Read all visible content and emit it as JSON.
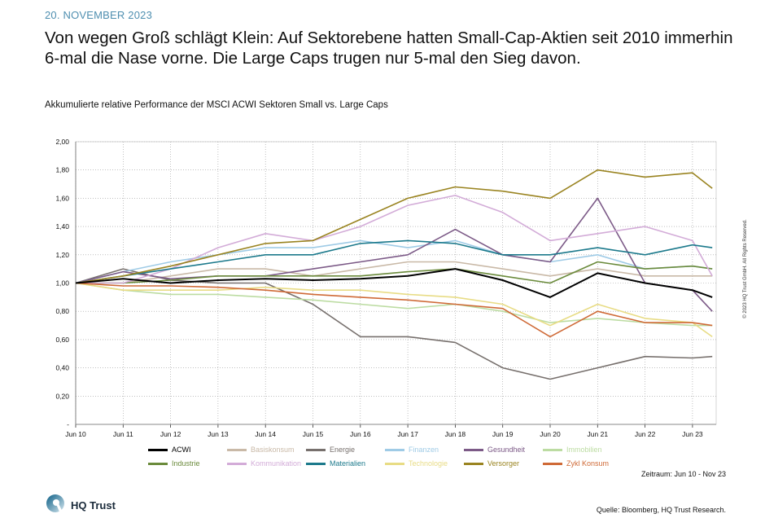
{
  "header": {
    "date": "20. NOVEMBER 2023",
    "title": "Von wegen Groß schlägt Klein: Auf Sektorebene hatten Small-Cap-Aktien seit 2010 immerhin 6-mal die Nase vorne. Die Large Caps trugen nur 5-mal den Sieg davon."
  },
  "footer": {
    "period": "Zeitraum: Jun 10 - Nov 23",
    "source": "Quelle: Bloomberg, HQ Trust Research.",
    "copyright": "© 2023 HQ Trust GmbH. All Rights Reserved.",
    "logo": "HQ Trust"
  },
  "chart_data": {
    "type": "line",
    "title": "Akkumulierte relative Performance der MSCI ACWI Sektoren Small vs. Large Caps",
    "xlabel": "",
    "ylabel": "",
    "ylim": [
      0,
      2
    ],
    "yticks": [
      "-",
      "0,20",
      "0,40",
      "0,60",
      "0,80",
      "1,00",
      "1,20",
      "1,40",
      "1,60",
      "1,80",
      "2,00"
    ],
    "xticks": [
      "Jun 10",
      "Jun 11",
      "Jun 12",
      "Jun 13",
      "Jun 14",
      "Jun 15",
      "Jun 16",
      "Jun 17",
      "Jun 18",
      "Jun 19",
      "Jun 20",
      "Jun 21",
      "Jun 22",
      "Jun 23"
    ],
    "grid": true,
    "legend": "bottom",
    "x": [
      "Jun 10",
      "Jun 11",
      "Jun 12",
      "Jun 13",
      "Jun 14",
      "Jun 15",
      "Jun 16",
      "Jun 17",
      "Jun 18",
      "Jun 19",
      "Jun 20",
      "Jun 21",
      "Jun 22",
      "Jun 23",
      "Nov 23"
    ],
    "series": [
      {
        "name": "ACWI",
        "color": "#000000",
        "values": [
          1.0,
          1.03,
          1.0,
          1.02,
          1.03,
          1.02,
          1.03,
          1.05,
          1.1,
          1.02,
          0.9,
          1.07,
          1.0,
          0.95,
          0.9
        ]
      },
      {
        "name": "Basiskonsum",
        "color": "#c9b9a7",
        "values": [
          1.0,
          1.0,
          1.05,
          1.1,
          1.1,
          1.05,
          1.1,
          1.15,
          1.15,
          1.1,
          1.05,
          1.1,
          1.05,
          1.05,
          1.05
        ]
      },
      {
        "name": "Energie",
        "color": "#77706d",
        "values": [
          1.0,
          1.1,
          1.02,
          1.0,
          1.0,
          0.85,
          0.62,
          0.62,
          0.58,
          0.4,
          0.32,
          0.4,
          0.48,
          0.47,
          0.48
        ]
      },
      {
        "name": "Finanzen",
        "color": "#9fcbe6",
        "values": [
          1.0,
          1.08,
          1.15,
          1.2,
          1.25,
          1.25,
          1.3,
          1.25,
          1.3,
          1.2,
          1.15,
          1.2,
          1.1,
          1.12,
          1.1
        ]
      },
      {
        "name": "Gesundheit",
        "color": "#7c5a87",
        "values": [
          1.0,
          1.08,
          1.03,
          1.05,
          1.05,
          1.1,
          1.15,
          1.2,
          1.38,
          1.2,
          1.15,
          1.6,
          1.0,
          0.95,
          0.8
        ]
      },
      {
        "name": "Immobilien",
        "color": "#bcdca2",
        "values": [
          1.0,
          0.95,
          0.92,
          0.92,
          0.9,
          0.88,
          0.85,
          0.82,
          0.85,
          0.8,
          0.72,
          0.75,
          0.72,
          0.7,
          0.7
        ]
      },
      {
        "name": "Industrie",
        "color": "#6b8b3c",
        "values": [
          1.0,
          1.0,
          1.02,
          1.05,
          1.05,
          1.05,
          1.05,
          1.08,
          1.1,
          1.05,
          1.0,
          1.15,
          1.1,
          1.12,
          1.1
        ]
      },
      {
        "name": "Kommunikation",
        "color": "#d3acd8",
        "values": [
          1.0,
          1.0,
          1.1,
          1.25,
          1.35,
          1.3,
          1.4,
          1.55,
          1.62,
          1.5,
          1.3,
          1.35,
          1.4,
          1.3,
          1.05
        ]
      },
      {
        "name": "Materialien",
        "color": "#1d7a8c",
        "values": [
          1.0,
          1.05,
          1.1,
          1.15,
          1.2,
          1.2,
          1.28,
          1.3,
          1.28,
          1.2,
          1.2,
          1.25,
          1.2,
          1.27,
          1.25
        ]
      },
      {
        "name": "Technologie",
        "color": "#e8dc85",
        "values": [
          1.0,
          0.95,
          0.95,
          0.95,
          0.97,
          0.95,
          0.95,
          0.92,
          0.9,
          0.85,
          0.7,
          0.85,
          0.75,
          0.72,
          0.62
        ]
      },
      {
        "name": "Versorger",
        "color": "#9a8421",
        "values": [
          1.0,
          1.05,
          1.12,
          1.2,
          1.28,
          1.3,
          1.45,
          1.6,
          1.68,
          1.65,
          1.6,
          1.8,
          1.75,
          1.78,
          1.67
        ]
      },
      {
        "name": "Zykl Konsum",
        "color": "#cf6a37",
        "values": [
          1.0,
          0.98,
          0.98,
          0.97,
          0.95,
          0.92,
          0.9,
          0.88,
          0.85,
          0.82,
          0.62,
          0.8,
          0.72,
          0.72,
          0.7
        ]
      }
    ]
  }
}
